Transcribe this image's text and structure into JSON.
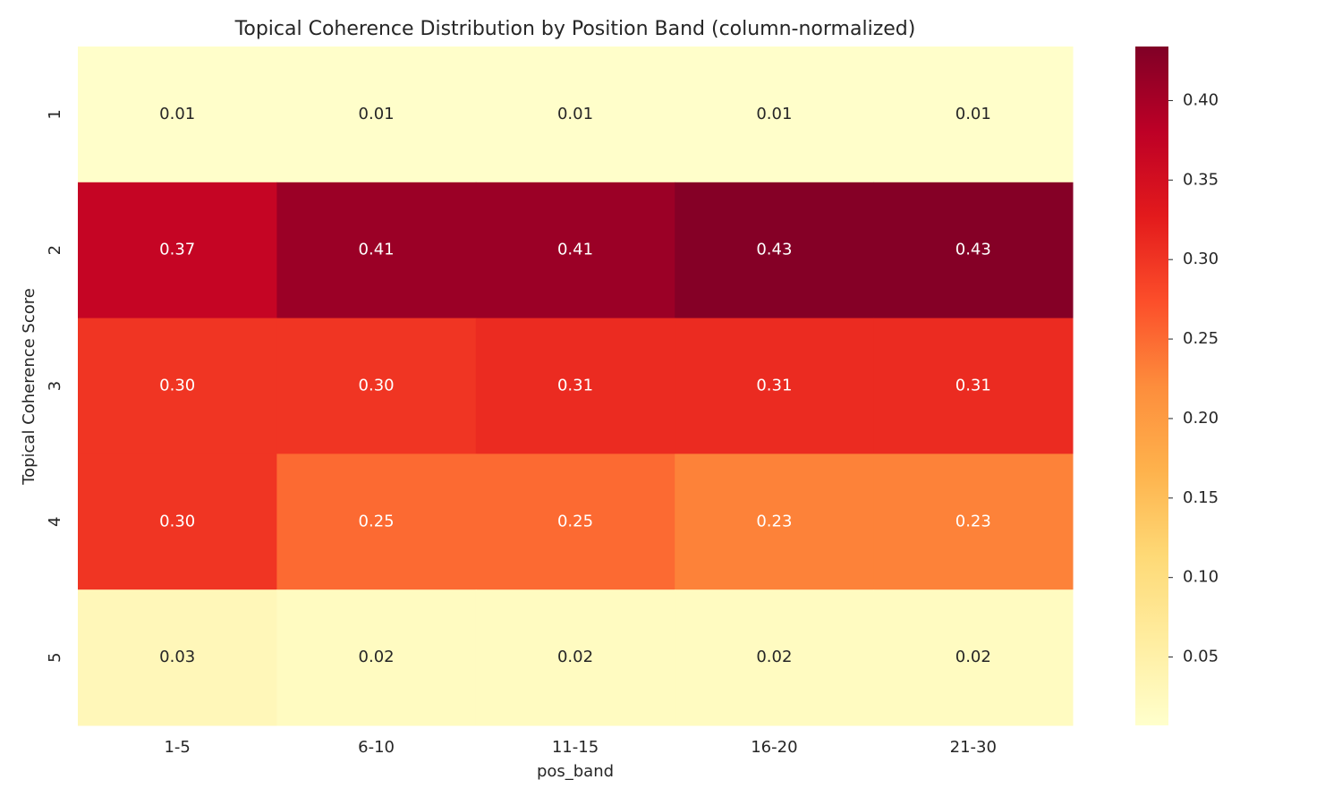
{
  "chart_data": {
    "type": "heatmap",
    "title": "Topical Coherence Distribution by Position Band (column-normalized)",
    "x_label": "pos_band",
    "y_label": "Topical Coherence Score",
    "x_categories": [
      "1-5",
      "6-10",
      "11-15",
      "16-20",
      "21-30"
    ],
    "y_categories": [
      "1",
      "2",
      "3",
      "4",
      "5"
    ],
    "values": [
      [
        0.01,
        0.01,
        0.01,
        0.01,
        0.01
      ],
      [
        0.37,
        0.41,
        0.41,
        0.43,
        0.43
      ],
      [
        0.3,
        0.3,
        0.31,
        0.31,
        0.31
      ],
      [
        0.3,
        0.25,
        0.25,
        0.23,
        0.23
      ],
      [
        0.03,
        0.02,
        0.02,
        0.02,
        0.02
      ]
    ],
    "value_labels": [
      [
        "0.01",
        "0.01",
        "0.01",
        "0.01",
        "0.01"
      ],
      [
        "0.37",
        "0.41",
        "0.41",
        "0.43",
        "0.43"
      ],
      [
        "0.30",
        "0.30",
        "0.31",
        "0.31",
        "0.31"
      ],
      [
        "0.30",
        "0.25",
        "0.25",
        "0.23",
        "0.23"
      ],
      [
        "0.03",
        "0.02",
        "0.02",
        "0.02",
        "0.02"
      ]
    ],
    "clim": [
      0.007,
      0.434
    ],
    "cticks": [
      0.05,
      {
        "value": 0.1,
        "label": "0.10"
      },
      0.15,
      {
        "value": 0.2,
        "label": "0.20"
      },
      0.25,
      {
        "value": 0.3,
        "label": "0.30"
      },
      0.35,
      {
        "value": 0.4,
        "label": "0.40"
      }
    ],
    "colormap": [
      "#ffffcc",
      "#ffeda0",
      "#fed976",
      "#feb24c",
      "#fd8d3c",
      "#fc4e2a",
      "#e31a1c",
      "#bd0026",
      "#800026"
    ]
  }
}
